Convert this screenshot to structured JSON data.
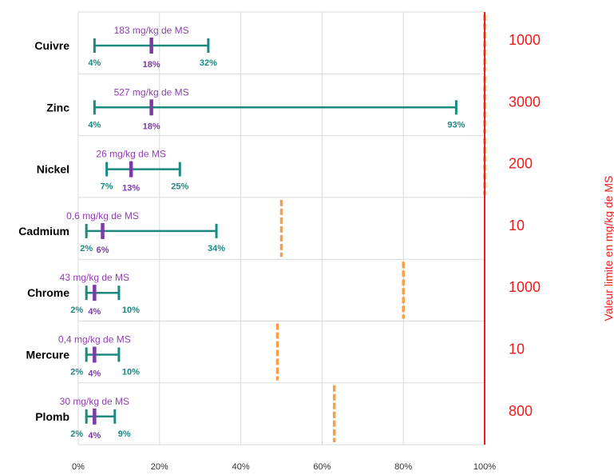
{
  "chart_data": {
    "type": "range",
    "categories": [
      "Cuivre",
      "Zinc",
      "Nickel",
      "Cadmium",
      "Chrome",
      "Mercure",
      "Plomb"
    ],
    "series": [
      {
        "values": [
          {
            "min": 4,
            "median": 18,
            "max": 32,
            "min_label": "4%",
            "median_label": "18%",
            "max_label": "32%",
            "value_label": "183 mg/kg de MS",
            "limit": 1000,
            "threshold": 100
          },
          {
            "min": 4,
            "median": 18,
            "max": 93,
            "min_label": "4%",
            "median_label": "18%",
            "max_label": "93%",
            "value_label": "527 mg/kg de MS",
            "limit": 3000,
            "threshold": 100
          },
          {
            "min": 7,
            "median": 13,
            "max": 25,
            "min_label": "7%",
            "median_label": "13%",
            "max_label": "25%",
            "value_label": "26 mg/kg de MS",
            "limit": 200,
            "threshold": 100
          },
          {
            "min": 2,
            "median": 6,
            "max": 34,
            "min_label": "2%",
            "median_label": "6%",
            "max_label": "34%",
            "value_label": "0,6 mg/kg de MS",
            "limit": 10,
            "threshold": 50
          },
          {
            "min": 2,
            "median": 4,
            "max": 10,
            "min_label": "2%",
            "median_label": "4%",
            "max_label": "10%",
            "value_label": "43 mg/kg de MS",
            "limit": 1000,
            "threshold": 80
          },
          {
            "min": 2,
            "median": 4,
            "max": 10,
            "min_label": "2%",
            "median_label": "4%",
            "max_label": "10%",
            "value_label": "0,4 mg/kg de MS",
            "limit": 10,
            "threshold": 49
          },
          {
            "min": 2,
            "median": 4,
            "max": 9,
            "min_label": "2%",
            "median_label": "4%",
            "max_label": "9%",
            "value_label": "30 mg/kg de MS",
            "limit": 800,
            "threshold": 63
          }
        ]
      }
    ],
    "x_ticks": [
      "0%",
      "20%",
      "40%",
      "60%",
      "80%",
      "100%"
    ],
    "xlim": [
      0,
      100
    ],
    "y2label": "Valeur limite en mg/kg de MS",
    "grid": true,
    "colors": {
      "range": "#1a8a80",
      "median": "#7b3aa6",
      "value_label": "#8e3fb0",
      "threshold": "#f5a04a",
      "limit": "#ee1c1c",
      "grid": "#d9d9d9"
    }
  }
}
